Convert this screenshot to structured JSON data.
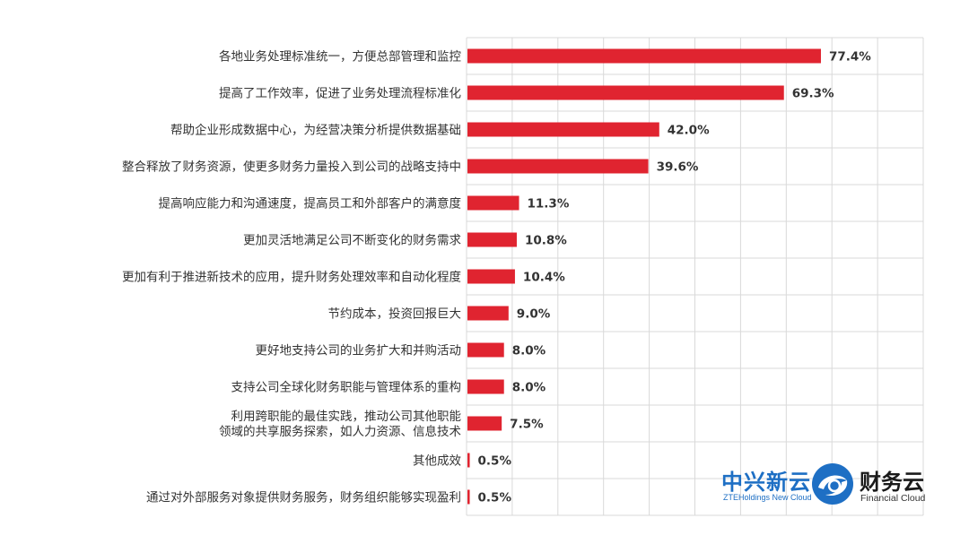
{
  "chart_data": {
    "type": "bar",
    "orientation": "horizontal",
    "grid": true,
    "xlim": [
      0,
      100
    ],
    "bar_color": "#e02430",
    "categories": [
      [
        "各地业务处理标准统一，方便总部管理和监控"
      ],
      [
        "提高了工作效率，促进了业务处理流程标准化"
      ],
      [
        "帮助企业形成数据中心，为经营决策分析提供数据基础"
      ],
      [
        "整合释放了财务资源，使更多财务力量投入到公司的战略支持中"
      ],
      [
        "提高响应能力和沟通速度，提高员工和外部客户的满意度"
      ],
      [
        "更加灵活地满足公司不断变化的财务需求"
      ],
      [
        "更加有利于推进新技术的应用，提升财务处理效率和自动化程度"
      ],
      [
        "节约成本，投资回报巨大"
      ],
      [
        "更好地支持公司的业务扩大和并购活动"
      ],
      [
        "支持公司全球化财务职能与管理体系的重构"
      ],
      [
        "利用跨职能的最佳实践，推动公司其他职能",
        "领域的共享服务探索，如人力资源、信息技术"
      ],
      [
        "其他成效"
      ],
      [
        "通过对外部服务对象提供财务服务，财务组织能够实现盈利"
      ]
    ],
    "values": [
      77.4,
      69.3,
      42.0,
      39.6,
      11.3,
      10.8,
      10.4,
      9.0,
      8.0,
      8.0,
      7.5,
      0.5,
      0.5
    ],
    "value_labels": [
      "77.4%",
      "69.3%",
      "42.0%",
      "39.6%",
      "11.3%",
      "10.8%",
      "10.4%",
      "9.0%",
      "8.0%",
      "8.0%",
      "7.5%",
      "0.5%",
      "0.5%"
    ]
  },
  "logo": {
    "zte_cn": "中兴新云",
    "zte_en": "ZTEHoldings New Cloud",
    "fc_cn": "财务云",
    "fc_en": "Financial Cloud",
    "color": "#1e6fc4"
  }
}
